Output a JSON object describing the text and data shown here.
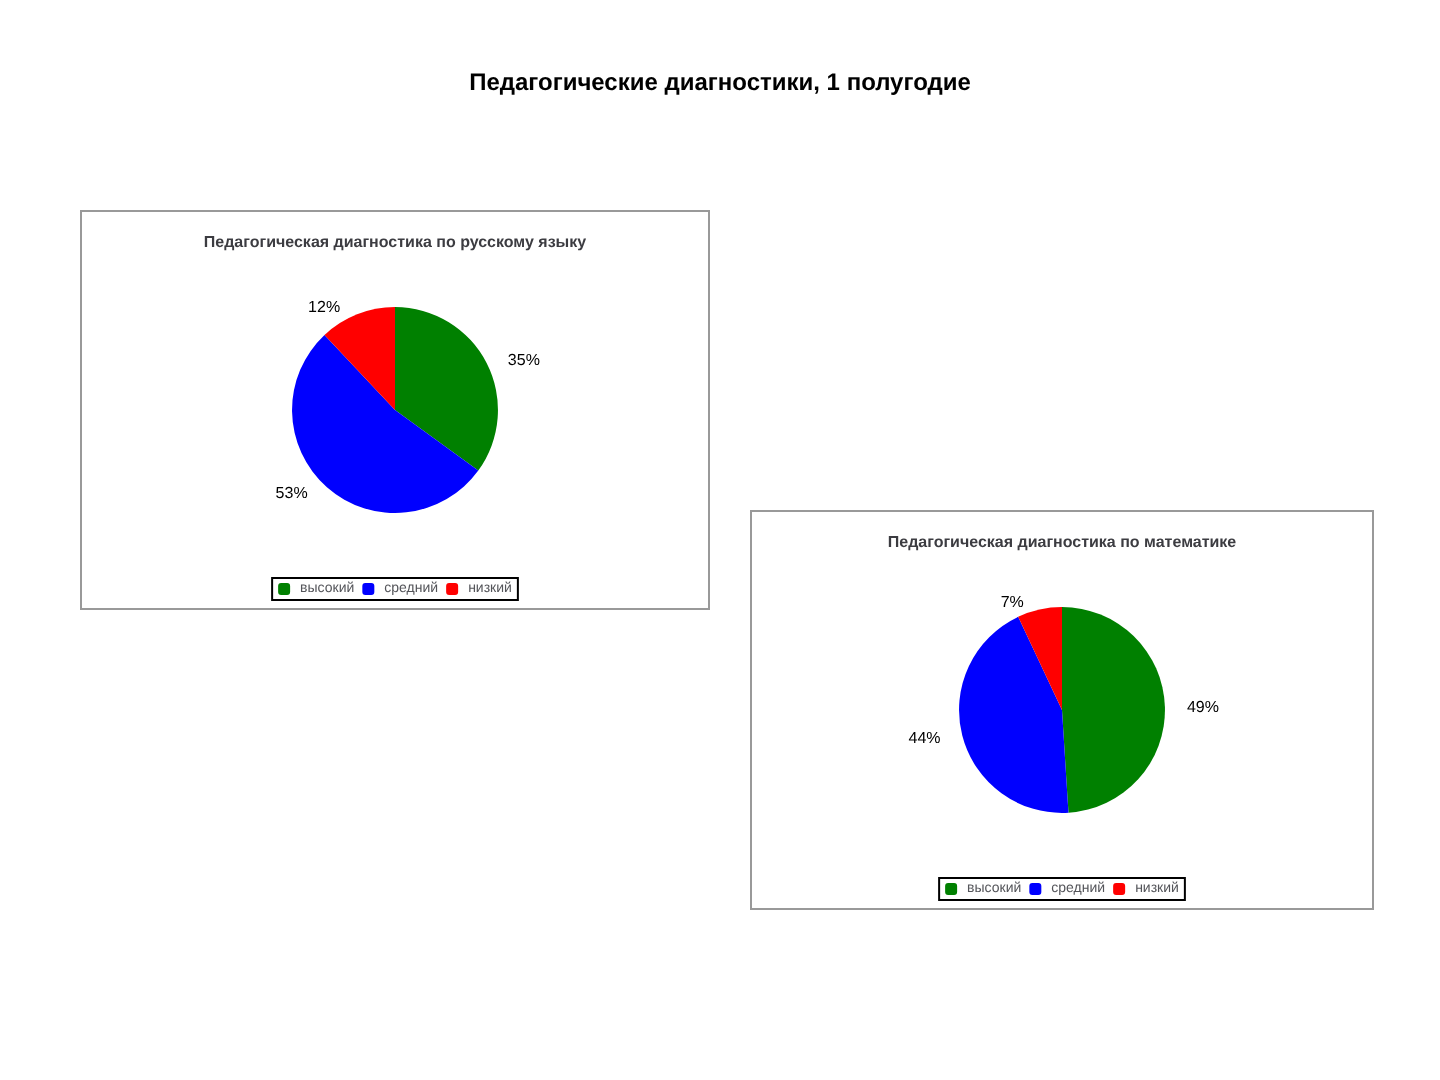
{
  "chart_data": [
    {
      "type": "pie",
      "title": "Педагогическая диагностика по русскому языку",
      "annotations": [
        "Педагогические диагностики, 1 полугодие"
      ],
      "categories": [
        "высокий",
        "средний",
        "низкий"
      ],
      "values": [
        35,
        53,
        12
      ],
      "value_labels": [
        "35%",
        "53%",
        "12%"
      ],
      "colors": [
        "#008000",
        "#0000ff",
        "#ff0000"
      ],
      "legend": "bottom"
    },
    {
      "type": "pie",
      "title": "Педагогическая диагностика по математике",
      "categories": [
        "высокий",
        "средний",
        "низкий"
      ],
      "values": [
        49,
        44,
        7
      ],
      "value_labels": [
        "49%",
        "44%",
        "7%"
      ],
      "colors": [
        "#008000",
        "#0000ff",
        "#ff0000"
      ],
      "legend": "bottom"
    }
  ]
}
